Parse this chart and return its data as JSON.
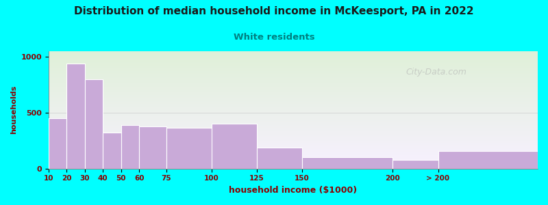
{
  "title": "Distribution of median household income in McKeesport, PA in 2022",
  "subtitle": "White residents",
  "xlabel": "household income ($1000)",
  "ylabel": "households",
  "title_color": "#1a1a1a",
  "subtitle_color": "#008080",
  "label_color": "#8B0000",
  "bar_color": "#c9aad8",
  "bar_edge_color": "#ffffff",
  "background_color": "#00ffff",
  "watermark": "City-Data.com",
  "bin_edges": [
    10,
    20,
    30,
    40,
    50,
    60,
    75,
    100,
    125,
    150,
    200,
    225,
    280
  ],
  "bin_labels": [
    "10",
    "20",
    "30",
    "40",
    "50",
    "60",
    "75",
    "100",
    "125",
    "150",
    "200",
    "> 200"
  ],
  "values": [
    450,
    940,
    800,
    320,
    390,
    375,
    365,
    400,
    190,
    105,
    80,
    155
  ],
  "ylim": [
    0,
    1050
  ],
  "yticks": [
    0,
    500,
    1000
  ]
}
